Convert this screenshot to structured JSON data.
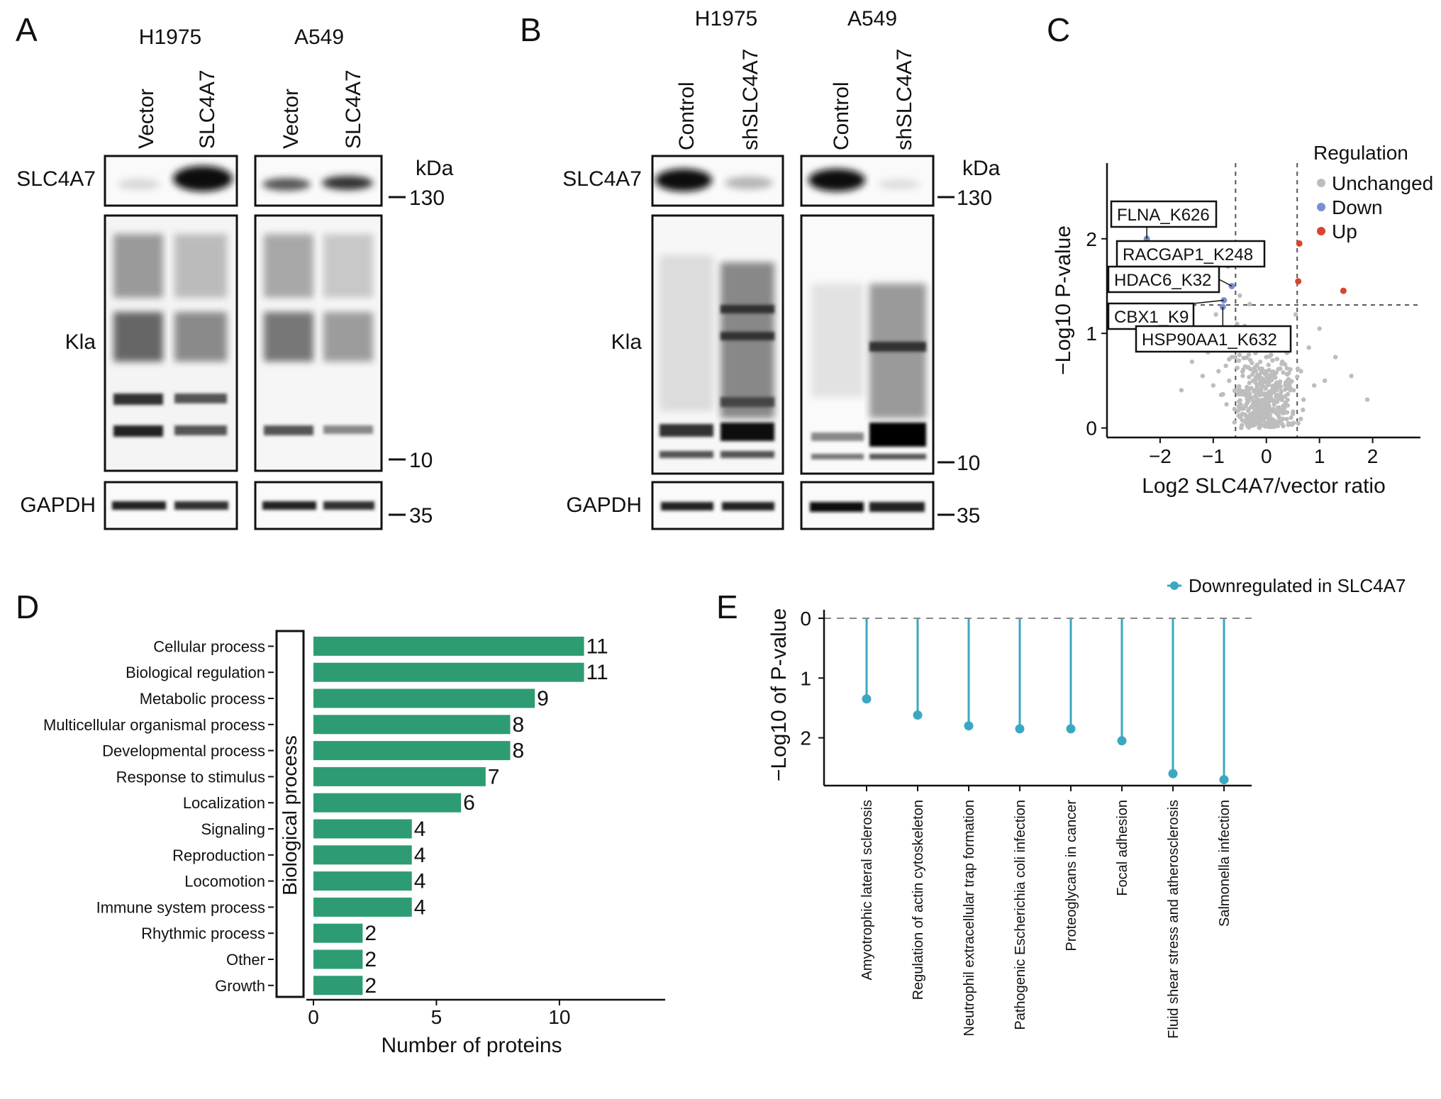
{
  "panels": {
    "A": {
      "letter": "A",
      "cell_lines": [
        "H1975",
        "A549"
      ],
      "lanes": [
        [
          "Vector",
          "SLC4A7"
        ],
        [
          "Vector",
          "SLC4A7"
        ]
      ],
      "row_labels": [
        "SLC4A7",
        "Kla",
        "GAPDH"
      ],
      "kda_label": "kDa",
      "markers": [
        "130",
        "10",
        "35"
      ]
    },
    "B": {
      "letter": "B",
      "cell_lines": [
        "H1975",
        "A549"
      ],
      "lanes": [
        [
          "Control",
          "shSLC4A7"
        ],
        [
          "Control",
          "shSLC4A7"
        ]
      ],
      "row_labels": [
        "SLC4A7",
        "Kla",
        "GAPDH"
      ],
      "kda_label": "kDa",
      "markers": [
        "130",
        "10",
        "35"
      ]
    },
    "C": {
      "letter": "C",
      "legend_title": "Regulation",
      "legend_items": [
        {
          "label": "Unchanged",
          "color": "#bdbdbd"
        },
        {
          "label": "Down",
          "color": "#7b8fd0"
        },
        {
          "label": "Up",
          "color": "#d9442b"
        }
      ],
      "annotations": [
        "FLNA_K626",
        "RACGAP1_K248",
        "HDAC6_K32",
        "CBX1_K9",
        "HSP90AA1_K632"
      ]
    },
    "D": {
      "letter": "D",
      "category_label": "Biological process"
    },
    "E": {
      "letter": "E"
    }
  },
  "chart_data": [
    {
      "type": "scatter",
      "panel": "C",
      "xlabel": "Log2 SLC4A7/vector ratio",
      "ylabel": "−Log10 P-value",
      "xticks": [
        -2,
        -1,
        0,
        1,
        2
      ],
      "yticks": [
        0,
        1,
        2
      ],
      "xlim": [
        -3.0,
        2.9
      ],
      "ylim": [
        -0.1,
        2.8
      ],
      "thresholds": {
        "x": [
          -0.58,
          0.58
        ],
        "y": 1.3
      },
      "legend_position": "top-right",
      "highlighted_points": [
        {
          "label": "FLNA_K626",
          "x": -2.25,
          "y": 2.0,
          "group": "Down"
        },
        {
          "label": "RACGAP1_K248",
          "x": -0.72,
          "y": 1.72,
          "group": "Down"
        },
        {
          "label": "HDAC6_K32",
          "x": -0.65,
          "y": 1.5,
          "group": "Down"
        },
        {
          "label": "CBX1_K9",
          "x": -0.8,
          "y": 1.35,
          "group": "Down"
        },
        {
          "label": "HSP90AA1_K632",
          "x": -0.82,
          "y": 1.28,
          "group": "Down"
        },
        {
          "label": "",
          "x": 0.62,
          "y": 1.95,
          "group": "Up"
        },
        {
          "label": "",
          "x": 0.6,
          "y": 1.55,
          "group": "Up"
        },
        {
          "label": "",
          "x": 1.45,
          "y": 1.45,
          "group": "Up"
        }
      ],
      "unchanged_points": [
        [
          -1.4,
          0.7
        ],
        [
          -1.2,
          0.55
        ],
        [
          -1.1,
          0.8
        ],
        [
          -1.0,
          0.45
        ],
        [
          -0.95,
          1.2
        ],
        [
          -0.9,
          0.6
        ],
        [
          -0.85,
          0.35
        ],
        [
          -0.8,
          0.95
        ],
        [
          -0.75,
          0.25
        ],
        [
          -0.7,
          0.5
        ],
        [
          -0.65,
          0.75
        ],
        [
          -0.6,
          0.2
        ],
        [
          -0.55,
          1.1
        ],
        [
          -0.5,
          0.4
        ],
        [
          -0.45,
          0.15
        ],
        [
          -0.4,
          0.65
        ],
        [
          -0.35,
          0.3
        ],
        [
          -0.3,
          0.1
        ],
        [
          -0.25,
          0.5
        ],
        [
          -0.2,
          0.22
        ],
        [
          -0.15,
          0.05
        ],
        [
          -0.1,
          0.4
        ],
        [
          -0.05,
          0.12
        ],
        [
          0.0,
          0.3
        ],
        [
          0.05,
          0.08
        ],
        [
          0.1,
          0.55
        ],
        [
          0.15,
          0.18
        ],
        [
          0.2,
          0.35
        ],
        [
          0.25,
          0.1
        ],
        [
          0.3,
          0.7
        ],
        [
          0.35,
          0.25
        ],
        [
          0.4,
          0.9
        ],
        [
          0.45,
          0.4
        ],
        [
          0.5,
          0.15
        ],
        [
          0.55,
          1.2
        ],
        [
          0.65,
          0.6
        ],
        [
          0.7,
          0.3
        ],
        [
          0.8,
          0.85
        ],
        [
          0.9,
          0.45
        ],
        [
          1.0,
          1.05
        ],
        [
          1.1,
          0.5
        ],
        [
          1.3,
          0.75
        ],
        [
          1.6,
          0.55
        ],
        [
          1.9,
          0.3
        ],
        [
          -1.6,
          0.4
        ],
        [
          -1.3,
          0.95
        ],
        [
          -0.95,
          1.55
        ],
        [
          -0.6,
          1.75
        ],
        [
          -0.5,
          1.4
        ],
        [
          -0.35,
          0.85
        ],
        [
          -0.2,
          0.6
        ],
        [
          0.0,
          0.75
        ],
        [
          0.2,
          0.9
        ],
        [
          0.35,
          1.05
        ],
        [
          0.15,
          0.45
        ],
        [
          -0.1,
          0.2
        ],
        [
          0.05,
          0.02
        ],
        [
          -0.3,
          0.02
        ],
        [
          0.3,
          0.04
        ],
        [
          0.6,
          0.05
        ],
        [
          -0.6,
          0.06
        ],
        [
          0.45,
          0.62
        ],
        [
          -0.45,
          0.95
        ]
      ]
    },
    {
      "type": "bar",
      "panel": "D",
      "orientation": "horizontal",
      "categories": [
        "Cellular process",
        "Biological regulation",
        "Metabolic process",
        "Multicellular organismal process",
        "Developmental process",
        "Response to stimulus",
        "Localization",
        "Signaling",
        "Reproduction",
        "Locomotion",
        "Immune system process",
        "Rhythmic process",
        "Other",
        "Growth"
      ],
      "values": [
        11,
        11,
        9,
        8,
        8,
        7,
        6,
        4,
        4,
        4,
        4,
        2,
        2,
        2
      ],
      "xlabel": "Number of proteins",
      "xticks": [
        0,
        5,
        10
      ],
      "xlim": [
        0,
        14.3
      ],
      "color": "#2e9c72"
    },
    {
      "type": "lollipop",
      "panel": "E",
      "ylabel": "−Log10 of P-value",
      "yticks": [
        0,
        1,
        2
      ],
      "ylim": [
        0,
        2.8
      ],
      "y_reversed": true,
      "legend": "Downregulated in SLC4A7",
      "legend_position": "top-right",
      "color": "#3aa8c1",
      "categories": [
        "Amyotrophic lateral sclerosis",
        "Regulation of actin cytoskeleton",
        "Neutrophil extracellular trap formation",
        "Pathogenic Escherichia coli infection",
        "Proteoglycans in cancer",
        "Focal adhesion",
        "Fluid shear stress and atherosclerosis",
        "Salmonella infection"
      ],
      "values": [
        1.35,
        1.62,
        1.8,
        1.85,
        1.85,
        2.05,
        2.6,
        2.7
      ]
    }
  ]
}
